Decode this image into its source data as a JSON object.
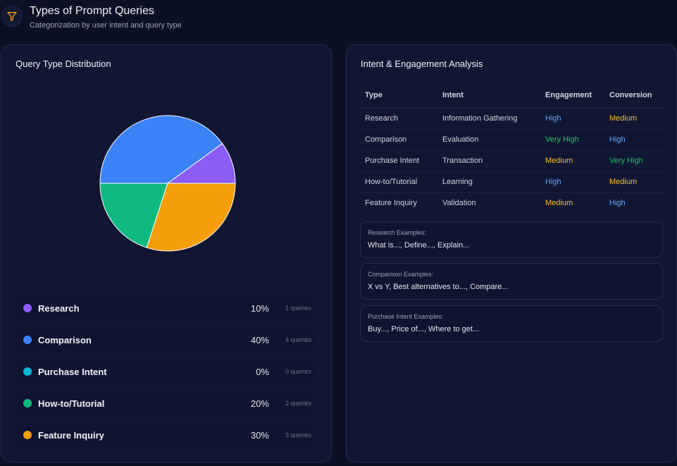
{
  "header": {
    "title": "Types of Prompt Queries",
    "subtitle": "Categorization by user intent and query type",
    "icon": "filter-icon"
  },
  "distribution": {
    "title": "Query Type Distribution",
    "items": [
      {
        "name": "Research",
        "pct": "10%",
        "count": "1 queries",
        "color": "#8b5cf6"
      },
      {
        "name": "Comparison",
        "pct": "40%",
        "count": "4 queries",
        "color": "#3b82f6"
      },
      {
        "name": "Purchase Intent",
        "pct": "0%",
        "count": "0 queries",
        "color": "#06b6d4"
      },
      {
        "name": "How-to/Tutorial",
        "pct": "20%",
        "count": "2 queries",
        "color": "#10b981"
      },
      {
        "name": "Feature Inquiry",
        "pct": "30%",
        "count": "3 queries",
        "color": "#f59e0b"
      }
    ]
  },
  "chart_data": {
    "type": "pie",
    "categories": [
      "Research",
      "Comparison",
      "Purchase Intent",
      "How-to/Tutorial",
      "Feature Inquiry"
    ],
    "values": [
      10,
      40,
      0,
      20,
      30
    ],
    "colors": [
      "#8b5cf6",
      "#3b82f6",
      "#06b6d4",
      "#10b981",
      "#f59e0b"
    ]
  },
  "analysis": {
    "title": "Intent & Engagement Analysis",
    "columns": [
      "Type",
      "Intent",
      "Engagement",
      "Conversion"
    ],
    "rows": [
      {
        "type": "Research",
        "intent": "Information Gathering",
        "engagement": "High",
        "conversion": "Medium"
      },
      {
        "type": "Comparison",
        "intent": "Evaluation",
        "engagement": "Very High",
        "conversion": "High"
      },
      {
        "type": "Purchase Intent",
        "intent": "Transaction",
        "engagement": "Medium",
        "conversion": "Very High"
      },
      {
        "type": "How-to/Tutorial",
        "intent": "Learning",
        "engagement": "High",
        "conversion": "Medium"
      },
      {
        "type": "Feature Inquiry",
        "intent": "Validation",
        "engagement": "Medium",
        "conversion": "High"
      }
    ],
    "level_colors": {
      "High": "#60a5fa",
      "Very High": "#22c55e",
      "Medium": "#fbbf24"
    },
    "examples": [
      {
        "label": "Research Examples:",
        "text": "What is..., Define..., Explain..."
      },
      {
        "label": "Comparison Examples:",
        "text": "X vs Y, Best alternatives to..., Compare..."
      },
      {
        "label": "Purchase Intent Examples:",
        "text": "Buy..., Price of..., Where to get..."
      }
    ]
  }
}
